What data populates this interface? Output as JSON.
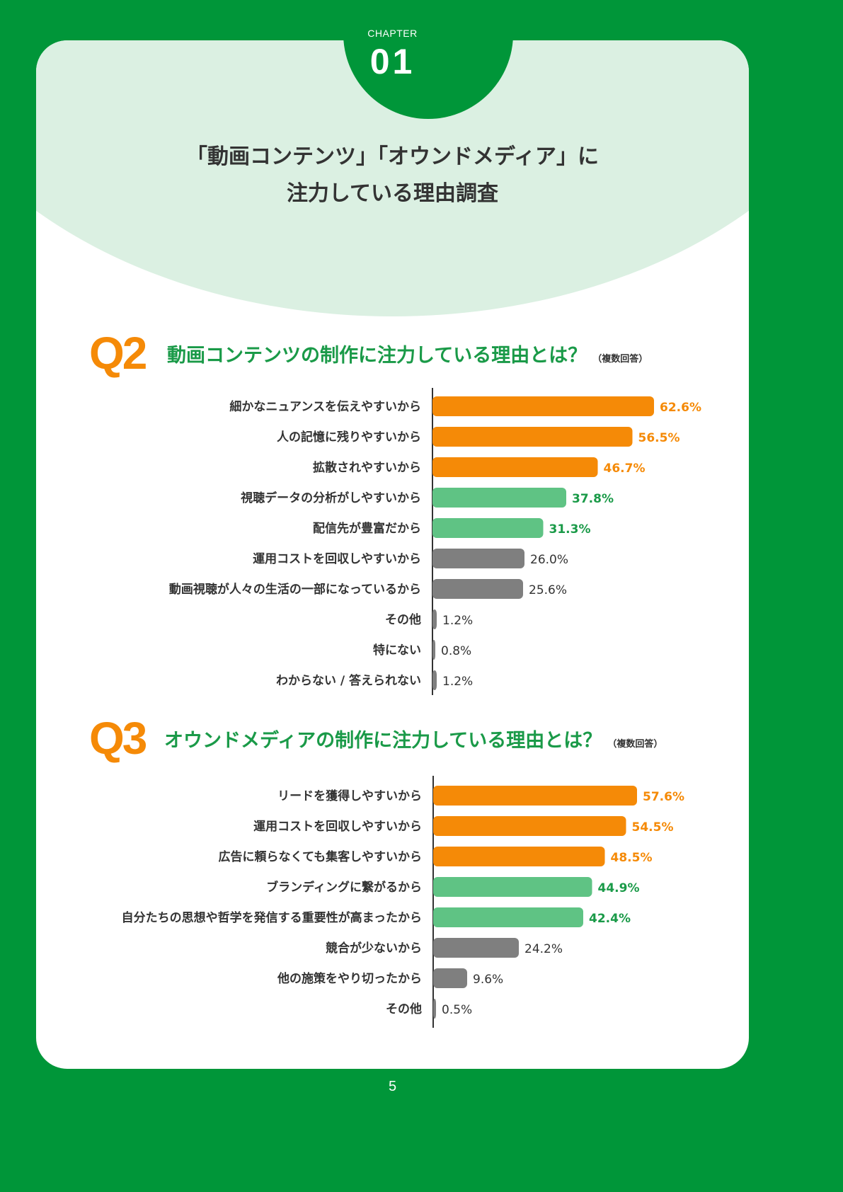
{
  "chapter": {
    "label": "CHAPTER",
    "number": "01"
  },
  "page_title": {
    "line1": "「動画コンテンツ」「オウンドメディア」に",
    "line2": "注力している理由調査"
  },
  "colors": {
    "background": "#009639",
    "orange": "#f58a07",
    "light_green": "#5fc384",
    "gray": "#7f7f7f",
    "green_text": "#1a9a48"
  },
  "q2": {
    "label": "Q2",
    "title": "動画コンテンツの制作に注力している理由とは？",
    "note": "（複数回答）"
  },
  "q3": {
    "label": "Q3",
    "title": "オウンドメディアの制作に注力している理由とは？",
    "note": "（複数回答）"
  },
  "chart_data": [
    {
      "type": "bar",
      "orientation": "horizontal",
      "categories": [
        "細かなニュアンスを伝えやすいから",
        "人の記憶に残りやすいから",
        "拡散されやすいから",
        "視聴データの分析がしやすいから",
        "配信先が豊富だから",
        "運用コストを回収しやすいから",
        "動画視聴が人々の生活の一部になっているから",
        "その他",
        "特にない",
        "わからない / 答えられない"
      ],
      "values": [
        62.6,
        56.5,
        46.7,
        37.8,
        31.3,
        26.0,
        25.6,
        1.2,
        0.8,
        1.2
      ],
      "value_labels": [
        "62.6%",
        "56.5%",
        "46.7%",
        "37.8%",
        "31.3%",
        "26.0%",
        "25.6%",
        "1.2%",
        "0.8%",
        "1.2%"
      ],
      "tiers": [
        "orange",
        "orange",
        "orange",
        "light_green",
        "light_green",
        "gray",
        "gray",
        "gray",
        "gray",
        "gray"
      ]
    },
    {
      "type": "bar",
      "orientation": "horizontal",
      "categories": [
        "リードを獲得しやすいから",
        "運用コストを回収しやすいから",
        "広告に頼らなくても集客しやすいから",
        "ブランディングに繋がるから",
        "自分たちの思想や哲学を発信する重要性が高まったから",
        "競合が少ないから",
        "他の施策をやり切ったから",
        "その他"
      ],
      "values": [
        57.6,
        54.5,
        48.5,
        44.9,
        42.4,
        24.2,
        9.6,
        0.5
      ],
      "value_labels": [
        "57.6%",
        "54.5%",
        "48.5%",
        "44.9%",
        "42.4%",
        "24.2%",
        "9.6%",
        "0.5%"
      ],
      "tiers": [
        "orange",
        "orange",
        "orange",
        "light_green",
        "light_green",
        "gray",
        "gray",
        "gray"
      ]
    }
  ],
  "page_number": "5"
}
